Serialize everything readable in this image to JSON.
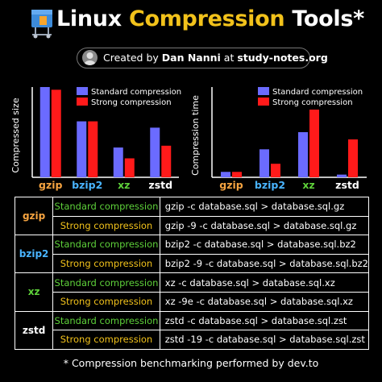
{
  "header": {
    "title_prefix": "Linux",
    "title_highlight": "Compression",
    "title_suffix": "Tools*"
  },
  "credit": {
    "prefix": "Created by",
    "author": "Dan Nanni",
    "middle": "at",
    "site": "study-notes.org"
  },
  "colors": {
    "standard": "#6b6bff",
    "strong": "#ff1a1a",
    "gzip": "#f5a340",
    "bzip2": "#49b4ff",
    "xz": "#5ed13a",
    "zstd": "#ffffff",
    "accent": "#f2c21b"
  },
  "chart_data": [
    {
      "type": "bar",
      "ylabel": "Compressed size",
      "categories": [
        "gzip",
        "bzip2",
        "xz",
        "zstd"
      ],
      "series": [
        {
          "name": "Standard compression",
          "values": [
            100,
            62,
            33,
            55
          ]
        },
        {
          "name": "Strong compression",
          "values": [
            97,
            62,
            21,
            35
          ]
        }
      ],
      "legend": "top-right",
      "grid": false
    },
    {
      "type": "bar",
      "ylabel": "Compression time",
      "categories": [
        "gzip",
        "bzip2",
        "xz",
        "zstd"
      ],
      "series": [
        {
          "name": "Standard compression",
          "values": [
            6,
            31,
            50,
            3
          ]
        },
        {
          "name": "Strong compression",
          "values": [
            6,
            15,
            75,
            42
          ]
        }
      ],
      "legend": "top-right",
      "grid": false
    }
  ],
  "table": {
    "rows": [
      {
        "tool": "gzip",
        "items": [
          {
            "level": "Standard compression",
            "cmd": "gzip -c database.sql > database.sql.gz"
          },
          {
            "level": "Strong compression",
            "cmd": "gzip -9 -c database.sql > database.sql.gz"
          }
        ]
      },
      {
        "tool": "bzip2",
        "items": [
          {
            "level": "Standard compression",
            "cmd": "bzip2 -c database.sql > database.sql.bz2"
          },
          {
            "level": "Strong compression",
            "cmd": "bzip2 -9 -c database.sql > database.sql.bz2"
          }
        ]
      },
      {
        "tool": "xz",
        "items": [
          {
            "level": "Standard compression",
            "cmd": "xz -c database.sql > database.sql.xz"
          },
          {
            "level": "Strong compression",
            "cmd": "xz -9e -c database.sql > database.sql.xz"
          }
        ]
      },
      {
        "tool": "zstd",
        "items": [
          {
            "level": "Standard compression",
            "cmd": "zstd -c database.sql > database.sql.zst"
          },
          {
            "level": "Strong compression",
            "cmd": "zstd -19 -c database.sql > database.sql.zst"
          }
        ]
      }
    ]
  },
  "footnote": "* Compression benchmarking performed by dev.to"
}
